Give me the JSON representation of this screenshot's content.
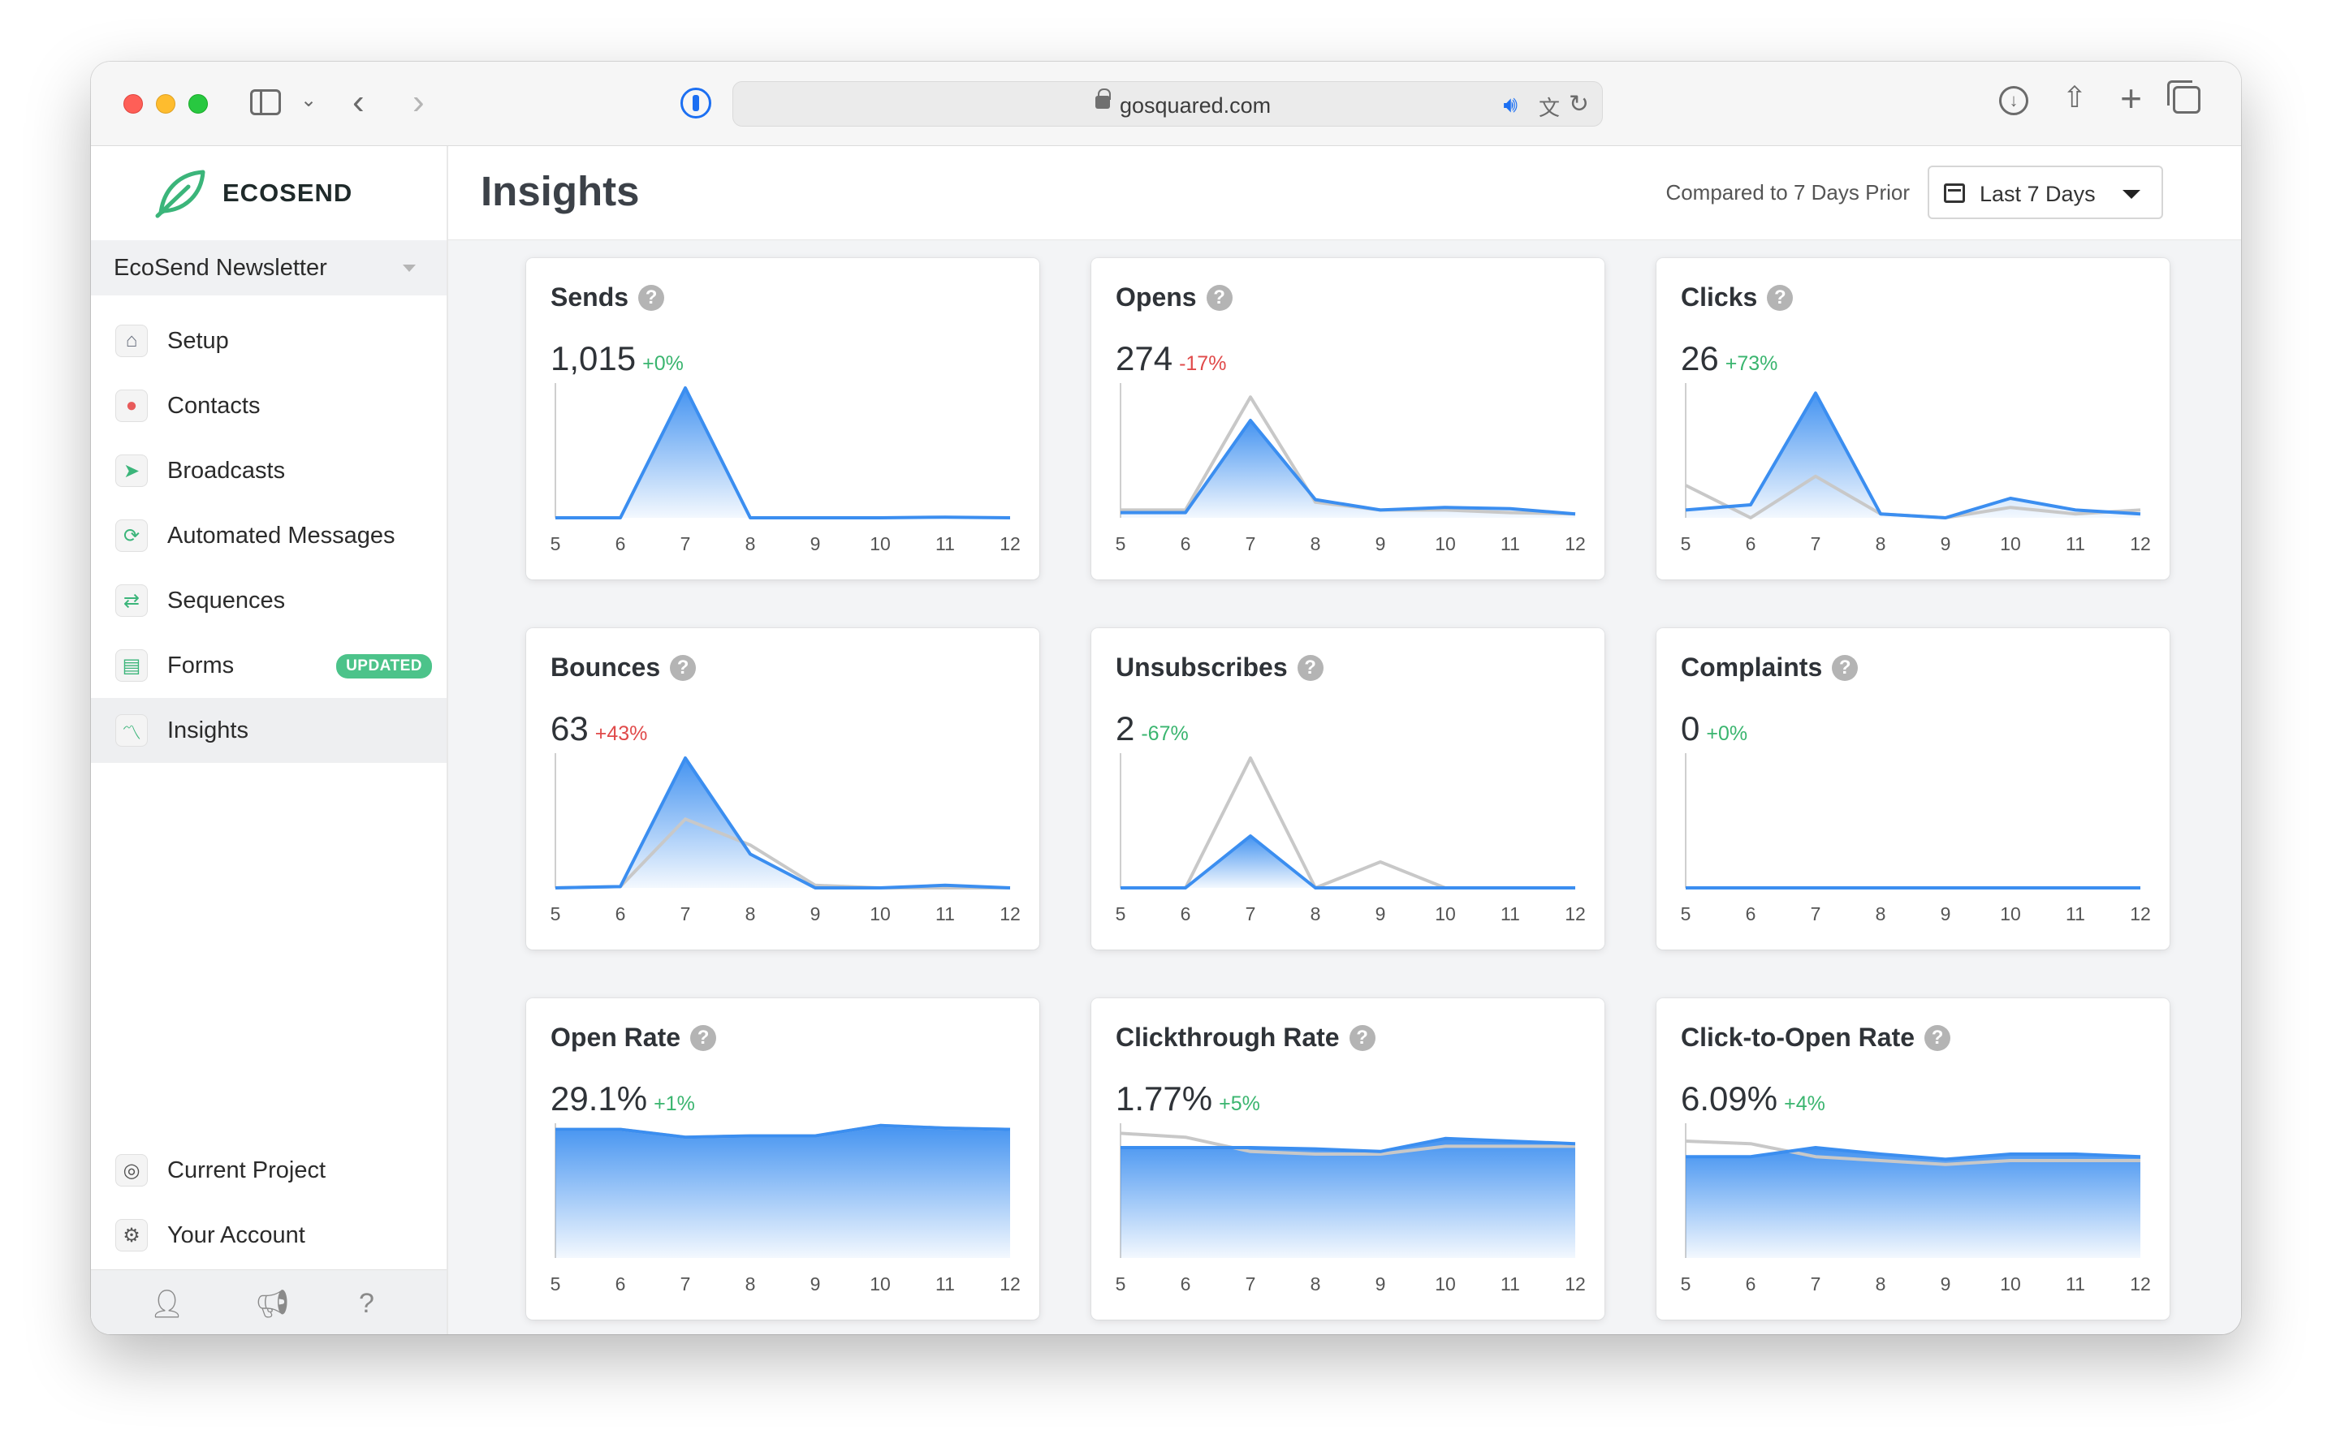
{
  "browser": {
    "url": "gosquared.com"
  },
  "brand": {
    "name": "ECOSEND",
    "accent": "#3bb57a"
  },
  "project": {
    "name": "EcoSend Newsletter"
  },
  "nav": {
    "items": [
      {
        "label": "Setup",
        "icon": "home-icon"
      },
      {
        "label": "Contacts",
        "icon": "contacts-icon"
      },
      {
        "label": "Broadcasts",
        "icon": "send-icon"
      },
      {
        "label": "Automated Messages",
        "icon": "repeat-icon"
      },
      {
        "label": "Sequences",
        "icon": "sequence-icon"
      },
      {
        "label": "Forms",
        "icon": "form-icon",
        "badge": "UPDATED"
      },
      {
        "label": "Insights",
        "icon": "chart-icon",
        "active": true
      }
    ],
    "bottom": [
      {
        "label": "Current Project",
        "icon": "project-icon"
      },
      {
        "label": "Your Account",
        "icon": "account-gear-icon"
      }
    ]
  },
  "header": {
    "title": "Insights",
    "compare": "Compared to 7 Days Prior",
    "range": "Last 7 Days"
  },
  "colors": {
    "current": "#3b8ef0",
    "previous": "#c8c8c8",
    "positive": "#3ab56f",
    "negative": "#e04a4a"
  },
  "cards": [
    {
      "title": "Sends",
      "value": "1,015",
      "change": "+0%",
      "change_color": "green"
    },
    {
      "title": "Opens",
      "value": "274",
      "change": "-17%",
      "change_color": "red"
    },
    {
      "title": "Clicks",
      "value": "26",
      "change": "+73%",
      "change_color": "green"
    },
    {
      "title": "Bounces",
      "value": "63",
      "change": "+43%",
      "change_color": "red"
    },
    {
      "title": "Unsubscribes",
      "value": "2",
      "change": "-67%",
      "change_color": "green"
    },
    {
      "title": "Complaints",
      "value": "0",
      "change": "+0%",
      "change_color": "green"
    },
    {
      "title": "Open Rate",
      "value": "29.1%",
      "change": "+1%",
      "change_color": "green"
    },
    {
      "title": "Clickthrough Rate",
      "value": "1.77%",
      "change": "+5%",
      "change_color": "green"
    },
    {
      "title": "Click-to-Open Rate",
      "value": "6.09%",
      "change": "+4%",
      "change_color": "green"
    }
  ],
  "chart_data": [
    {
      "type": "area",
      "x": [
        5,
        6,
        7,
        8,
        9,
        10,
        11,
        12
      ],
      "ylim": [
        0,
        1
      ],
      "series": [
        {
          "values": [
            0,
            0,
            1.0,
            0,
            0,
            0,
            0.005,
            0
          ]
        }
      ]
    },
    {
      "type": "area",
      "x": [
        5,
        6,
        7,
        8,
        9,
        10,
        11,
        12
      ],
      "ylim": [
        0,
        1
      ],
      "series": [
        {
          "values": [
            0.04,
            0.04,
            0.75,
            0.14,
            0.06,
            0.08,
            0.07,
            0.03
          ]
        },
        {
          "values": [
            0.06,
            0.06,
            0.93,
            0.12,
            0.06,
            0.06,
            0.04,
            0.03
          ]
        }
      ]
    },
    {
      "type": "area",
      "x": [
        5,
        6,
        7,
        8,
        9,
        10,
        11,
        12
      ],
      "ylim": [
        0,
        1
      ],
      "series": [
        {
          "values": [
            0.06,
            0.1,
            0.96,
            0.03,
            0,
            0.15,
            0.06,
            0.03
          ]
        },
        {
          "values": [
            0.25,
            0,
            0.32,
            0.03,
            0,
            0.08,
            0.03,
            0.06
          ]
        }
      ]
    },
    {
      "type": "area",
      "x": [
        5,
        6,
        7,
        8,
        9,
        10,
        11,
        12
      ],
      "ylim": [
        0,
        1
      ],
      "series": [
        {
          "values": [
            0,
            0.01,
            1.0,
            0.26,
            0,
            0,
            0.02,
            0
          ]
        },
        {
          "values": [
            0,
            0.01,
            0.53,
            0.33,
            0.02,
            0,
            0,
            0
          ]
        }
      ]
    },
    {
      "type": "area",
      "x": [
        5,
        6,
        7,
        8,
        9,
        10,
        11,
        12
      ],
      "ylim": [
        0,
        1
      ],
      "series": [
        {
          "values": [
            0,
            0,
            0.4,
            0,
            0,
            0,
            0,
            0
          ]
        },
        {
          "values": [
            0,
            0,
            1.0,
            0,
            0.2,
            0,
            0,
            0
          ]
        }
      ]
    },
    {
      "type": "area",
      "x": [
        5,
        6,
        7,
        8,
        9,
        10,
        11,
        12
      ],
      "ylim": [
        0,
        1
      ],
      "series": [
        {
          "values": [
            0,
            0,
            0,
            0,
            0,
            0,
            0,
            0
          ]
        }
      ]
    },
    {
      "type": "area",
      "x": [
        5,
        6,
        7,
        8,
        9,
        10,
        11,
        12
      ],
      "ylim": [
        0,
        1
      ],
      "series": [
        {
          "values": [
            0.99,
            0.99,
            0.93,
            0.94,
            0.94,
            1.02,
            1.0,
            0.99
          ]
        },
        {
          "values": [
            0.99,
            0.99,
            0.93,
            0.94,
            0.94,
            1.02,
            1.0,
            0.99
          ]
        }
      ]
    },
    {
      "type": "area",
      "x": [
        5,
        6,
        7,
        8,
        9,
        10,
        11,
        12
      ],
      "ylim": [
        0,
        1
      ],
      "series": [
        {
          "values": [
            0.85,
            0.85,
            0.85,
            0.84,
            0.82,
            0.92,
            0.9,
            0.88
          ]
        },
        {
          "values": [
            0.96,
            0.93,
            0.82,
            0.8,
            0.8,
            0.86,
            0.86,
            0.86
          ]
        }
      ]
    },
    {
      "type": "area",
      "x": [
        5,
        6,
        7,
        8,
        9,
        10,
        11,
        12
      ],
      "ylim": [
        0,
        1
      ],
      "series": [
        {
          "values": [
            0.78,
            0.78,
            0.85,
            0.8,
            0.76,
            0.8,
            0.8,
            0.78
          ]
        },
        {
          "values": [
            0.9,
            0.88,
            0.78,
            0.75,
            0.72,
            0.75,
            0.75,
            0.75
          ]
        }
      ]
    }
  ]
}
